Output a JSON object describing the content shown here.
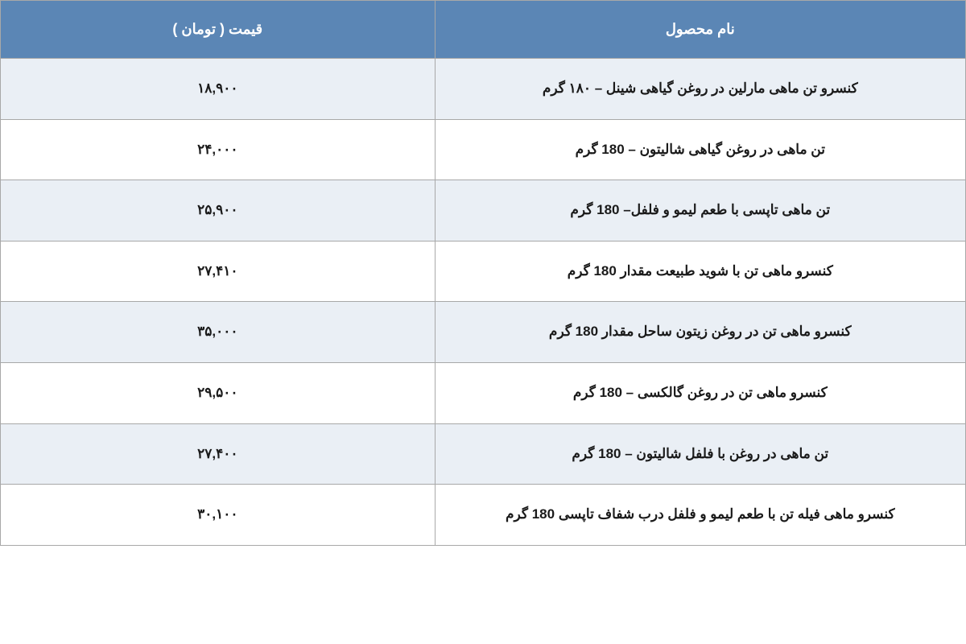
{
  "table": {
    "type": "table",
    "columns": [
      {
        "key": "product",
        "label": "نام محصول",
        "width_percent": 55,
        "align": "center"
      },
      {
        "key": "price",
        "label": "قیمت ( تومان )",
        "width_percent": 45,
        "align": "center"
      }
    ],
    "rows": [
      {
        "product": "کنسرو تن ماهی مارلین در روغن گیاهی شینل – ۱۸۰ گرم",
        "price": "۱۸,۹۰۰"
      },
      {
        "product": "تن ماهی در روغن گیاهی شالیتون – 180 گرم",
        "price": "۲۴,۰۰۰"
      },
      {
        "product": "تن ماهی تاپسی با طعم لیمو و فلفل– 180 گرم",
        "price": "۲۵,۹۰۰"
      },
      {
        "product": "کنسرو ماهی تن با شوید طبیعت مقدار 180 گرم",
        "price": "۲۷,۴۱۰"
      },
      {
        "product": "کنسرو ماهی تن در روغن زیتون ساحل مقدار 180 گرم",
        "price": "۳۵,۰۰۰"
      },
      {
        "product": "کنسرو ماهی تن در روغن گالکسی – 180 گرم",
        "price": "۲۹,۵۰۰"
      },
      {
        "product": "تن ماهی در روغن با فلفل شالیتون – 180 گرم",
        "price": "۲۷,۴۰۰"
      },
      {
        "product": "کنسرو ماهی فیله تن با طعم لیمو و فلفل درب شفاف تاپسی 180 گرم",
        "price": "۳۰,۱۰۰"
      }
    ],
    "styling": {
      "header_bg_color": "#5b86b5",
      "header_text_color": "#ffffff",
      "header_fontsize": 18,
      "row_odd_bg_color": "#eaeff5",
      "row_even_bg_color": "#ffffff",
      "cell_text_color": "#1a1a1a",
      "cell_fontsize": 17,
      "cell_font_weight": "bold",
      "border_color": "#a8a8a8",
      "border_width": 1,
      "cell_padding_vertical": 22,
      "cell_padding_horizontal": 35,
      "line_height": 1.8,
      "direction": "rtl"
    }
  }
}
